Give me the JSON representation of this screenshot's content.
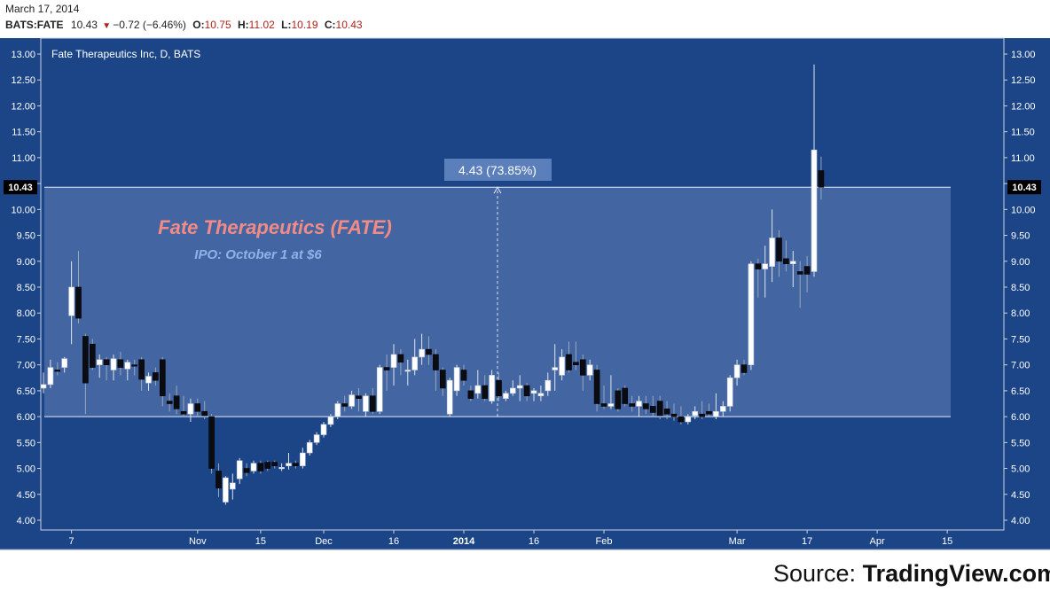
{
  "header": {
    "date": "March 17, 2014",
    "symbol": "BATS:FATE",
    "last": "10.43",
    "change": "−0.72 (−6.46%)",
    "open_label": "O:",
    "open": "10.75",
    "high_label": "H:",
    "high": "11.02",
    "low_label": "L:",
    "low": "10.19",
    "close_label": "C:",
    "close": "10.43"
  },
  "chart_data": {
    "type": "candlestick",
    "instrument": "Fate Therapeutics Inc, D, BATS",
    "annotation_title": "Fate Therapeutics (FATE)",
    "annotation_subtitle": "IPO: October 1 at $6",
    "measure_label": "4.43 (73.85%)",
    "measure_range": [
      6.0,
      10.43
    ],
    "last_price_label": "10.43",
    "ylim": [
      3.8,
      13.3
    ],
    "y_ticks": [
      "13.00",
      "12.50",
      "12.00",
      "11.50",
      "11.00",
      "10.50",
      "10.00",
      "9.50",
      "9.00",
      "8.50",
      "8.00",
      "7.50",
      "7.00",
      "6.50",
      "6.00",
      "5.50",
      "5.00",
      "4.50",
      "4.00"
    ],
    "x_ticks": [
      {
        "label": "7",
        "index": 4
      },
      {
        "label": "Nov",
        "index": 22
      },
      {
        "label": "15",
        "index": 31
      },
      {
        "label": "Dec",
        "index": 40
      },
      {
        "label": "16",
        "index": 50
      },
      {
        "label": "2014",
        "index": 60
      },
      {
        "label": "16",
        "index": 70
      },
      {
        "label": "Feb",
        "index": 80
      },
      {
        "label": "Mar",
        "index": 99
      },
      {
        "label": "17",
        "index": 109
      },
      {
        "label": "Apr",
        "index": 119
      },
      {
        "label": "15",
        "index": 129
      }
    ],
    "up_color": "#ffffff",
    "down_color": "#0b0b12",
    "background": "#1c4587",
    "candles": [
      [
        6.55,
        6.85,
        6.45,
        6.62
      ],
      [
        6.62,
        7.1,
        6.55,
        6.95
      ],
      [
        6.9,
        7.05,
        6.8,
        6.88
      ],
      [
        6.95,
        7.15,
        6.85,
        7.12
      ],
      [
        7.95,
        9.0,
        7.4,
        8.5
      ],
      [
        8.5,
        9.2,
        7.8,
        7.9
      ],
      [
        7.55,
        7.6,
        6.05,
        6.65
      ],
      [
        7.4,
        7.5,
        6.9,
        6.95
      ],
      [
        7.0,
        7.2,
        6.75,
        7.1
      ],
      [
        7.1,
        7.15,
        6.7,
        7.0
      ],
      [
        6.9,
        7.2,
        6.7,
        7.12
      ],
      [
        7.1,
        7.25,
        6.8,
        6.95
      ],
      [
        6.92,
        7.1,
        6.7,
        7.05
      ],
      [
        7.0,
        7.1,
        6.8,
        6.98
      ],
      [
        7.1,
        7.15,
        6.5,
        6.72
      ],
      [
        6.65,
        6.85,
        6.5,
        6.78
      ],
      [
        6.85,
        6.95,
        6.6,
        6.7
      ],
      [
        7.1,
        7.15,
        6.2,
        6.4
      ],
      [
        6.3,
        6.45,
        6.1,
        6.25
      ],
      [
        6.4,
        6.6,
        6.05,
        6.15
      ],
      [
        6.1,
        6.4,
        6.0,
        6.05
      ],
      [
        6.05,
        6.35,
        5.9,
        6.25
      ],
      [
        6.25,
        6.35,
        6.0,
        6.1
      ],
      [
        6.1,
        6.3,
        5.95,
        6.02
      ],
      [
        6.0,
        6.05,
        4.9,
        5.0
      ],
      [
        4.95,
        5.1,
        4.45,
        4.62
      ],
      [
        4.35,
        4.85,
        4.3,
        4.82
      ],
      [
        4.6,
        4.9,
        4.4,
        4.72
      ],
      [
        4.8,
        5.2,
        4.7,
        5.15
      ],
      [
        5.0,
        5.1,
        4.85,
        4.92
      ],
      [
        4.95,
        5.15,
        4.9,
        5.1
      ],
      [
        5.1,
        5.15,
        4.9,
        4.95
      ],
      [
        5.12,
        5.15,
        4.95,
        5.0
      ],
      [
        5.12,
        5.15,
        5.0,
        5.05
      ],
      [
        5.0,
        5.1,
        4.95,
        5.02
      ],
      [
        5.05,
        5.3,
        4.98,
        5.1
      ],
      [
        5.1,
        5.15,
        5.0,
        5.05
      ],
      [
        5.05,
        5.4,
        5.0,
        5.3
      ],
      [
        5.3,
        5.55,
        5.25,
        5.5
      ],
      [
        5.5,
        5.7,
        5.45,
        5.65
      ],
      [
        5.65,
        5.9,
        5.6,
        5.85
      ],
      [
        5.85,
        6.05,
        5.8,
        6.0
      ],
      [
        6.0,
        6.3,
        5.95,
        6.25
      ],
      [
        6.25,
        6.4,
        6.1,
        6.2
      ],
      [
        6.2,
        6.5,
        6.15,
        6.42
      ],
      [
        6.4,
        6.55,
        6.1,
        6.35
      ],
      [
        6.1,
        6.45,
        6.0,
        6.4
      ],
      [
        6.4,
        6.55,
        6.05,
        6.1
      ],
      [
        6.1,
        7.0,
        6.05,
        6.95
      ],
      [
        6.95,
        7.2,
        6.5,
        6.9
      ],
      [
        6.95,
        7.4,
        6.6,
        7.2
      ],
      [
        7.2,
        7.3,
        6.8,
        7.05
      ],
      [
        6.9,
        7.1,
        6.6,
        6.9
      ],
      [
        6.9,
        7.5,
        6.8,
        7.15
      ],
      [
        7.15,
        7.6,
        7.0,
        7.3
      ],
      [
        7.3,
        7.55,
        7.0,
        7.2
      ],
      [
        7.2,
        7.3,
        6.5,
        6.9
      ],
      [
        6.9,
        6.95,
        6.4,
        6.55
      ],
      [
        6.05,
        6.75,
        6.0,
        6.7
      ],
      [
        6.5,
        7.0,
        6.4,
        6.95
      ],
      [
        6.9,
        7.0,
        6.6,
        6.7
      ],
      [
        6.5,
        6.6,
        6.3,
        6.35
      ],
      [
        6.45,
        6.9,
        6.35,
        6.6
      ],
      [
        6.6,
        6.8,
        6.3,
        6.35
      ],
      [
        6.3,
        6.9,
        6.25,
        6.8
      ],
      [
        6.7,
        6.85,
        6.3,
        6.4
      ],
      [
        6.35,
        6.5,
        6.3,
        6.45
      ],
      [
        6.45,
        6.7,
        6.4,
        6.55
      ],
      [
        6.55,
        6.8,
        6.3,
        6.6
      ],
      [
        6.6,
        6.65,
        6.3,
        6.4
      ],
      [
        6.45,
        6.55,
        6.3,
        6.5
      ],
      [
        6.4,
        6.6,
        6.3,
        6.45
      ],
      [
        6.5,
        6.85,
        6.4,
        6.7
      ],
      [
        6.9,
        7.4,
        6.5,
        6.95
      ],
      [
        6.8,
        7.3,
        6.7,
        7.15
      ],
      [
        7.2,
        7.45,
        6.85,
        6.9
      ],
      [
        7.05,
        7.45,
        6.9,
        7.0
      ],
      [
        7.1,
        7.2,
        6.5,
        6.8
      ],
      [
        6.8,
        7.1,
        6.7,
        7.0
      ],
      [
        6.9,
        7.0,
        6.1,
        6.25
      ],
      [
        6.25,
        6.6,
        6.15,
        6.2
      ],
      [
        6.2,
        6.8,
        6.15,
        6.25
      ],
      [
        6.5,
        6.55,
        6.1,
        6.15
      ],
      [
        6.55,
        6.6,
        6.2,
        6.25
      ],
      [
        6.25,
        6.4,
        6.1,
        6.2
      ],
      [
        6.2,
        6.4,
        6.0,
        6.3
      ],
      [
        6.25,
        6.4,
        6.05,
        6.15
      ],
      [
        6.2,
        6.4,
        6.0,
        6.08
      ],
      [
        6.3,
        6.4,
        5.95,
        6.02
      ],
      [
        6.15,
        6.3,
        5.95,
        6.05
      ],
      [
        6.05,
        6.25,
        5.92,
        6.0
      ],
      [
        6.0,
        6.2,
        5.85,
        5.9
      ],
      [
        5.9,
        6.05,
        5.85,
        6.0
      ],
      [
        6.02,
        6.2,
        5.95,
        6.1
      ],
      [
        6.05,
        6.3,
        5.95,
        6.0
      ],
      [
        6.1,
        6.25,
        6.0,
        6.05
      ],
      [
        6.0,
        6.45,
        5.95,
        6.1
      ],
      [
        6.1,
        6.3,
        6.0,
        6.2
      ],
      [
        6.2,
        6.8,
        6.1,
        6.75
      ],
      [
        6.75,
        7.1,
        6.6,
        7.0
      ],
      [
        7.0,
        7.1,
        6.8,
        6.85
      ],
      [
        7.0,
        9.0,
        6.9,
        8.95
      ],
      [
        8.95,
        9.05,
        8.3,
        8.85
      ],
      [
        8.85,
        9.3,
        8.3,
        8.95
      ],
      [
        8.9,
        10.0,
        8.6,
        9.45
      ],
      [
        9.45,
        9.6,
        8.7,
        9.0
      ],
      [
        9.05,
        9.4,
        8.8,
        8.95
      ],
      [
        8.95,
        9.2,
        8.5,
        9.0
      ],
      [
        8.8,
        9.0,
        8.1,
        8.75
      ],
      [
        8.9,
        9.1,
        8.4,
        8.75
      ],
      [
        8.8,
        12.8,
        8.7,
        11.15
      ],
      [
        10.75,
        11.02,
        10.19,
        10.43
      ]
    ]
  },
  "source": {
    "prefix": "Source: ",
    "name": "TradingView.com"
  }
}
